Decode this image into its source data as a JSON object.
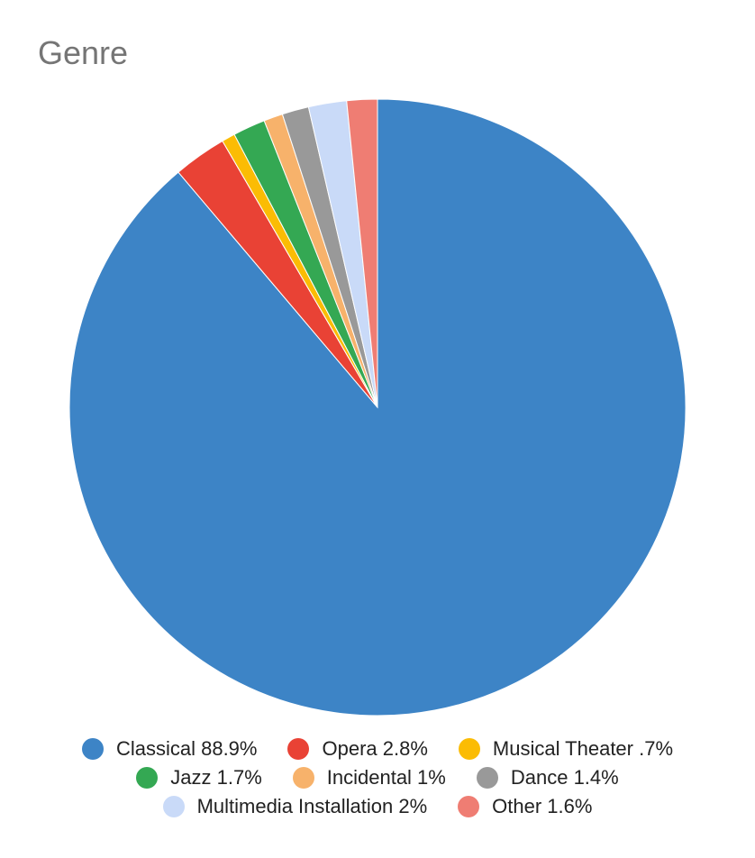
{
  "chart_data": {
    "type": "pie",
    "title": "Genre",
    "slices": [
      {
        "label": "Classical",
        "value": 88.9,
        "display": "Classical 88.9%",
        "color": "#3d84c6"
      },
      {
        "label": "Opera",
        "value": 2.8,
        "display": "Opera 2.8%",
        "color": "#e94235"
      },
      {
        "label": "Musical Theater",
        "value": 0.7,
        "display": "Musical Theater .7%",
        "color": "#fbbc04"
      },
      {
        "label": "Jazz",
        "value": 1.7,
        "display": "Jazz 1.7%",
        "color": "#34a853"
      },
      {
        "label": "Incidental",
        "value": 1,
        "display": "Incidental 1%",
        "color": "#f7b26b"
      },
      {
        "label": "Dance",
        "value": 1.4,
        "display": "Dance 1.4%",
        "color": "#999999"
      },
      {
        "label": "Multimedia Installation",
        "value": 2,
        "display": "Multimedia Installation 2%",
        "color": "#c9daf8"
      },
      {
        "label": "Other",
        "value": 1.6,
        "display": "Other 1.6%",
        "color": "#ef7d73"
      }
    ],
    "start_angle": "12 o'clock",
    "direction": "clockwise",
    "legend_position": "bottom"
  }
}
